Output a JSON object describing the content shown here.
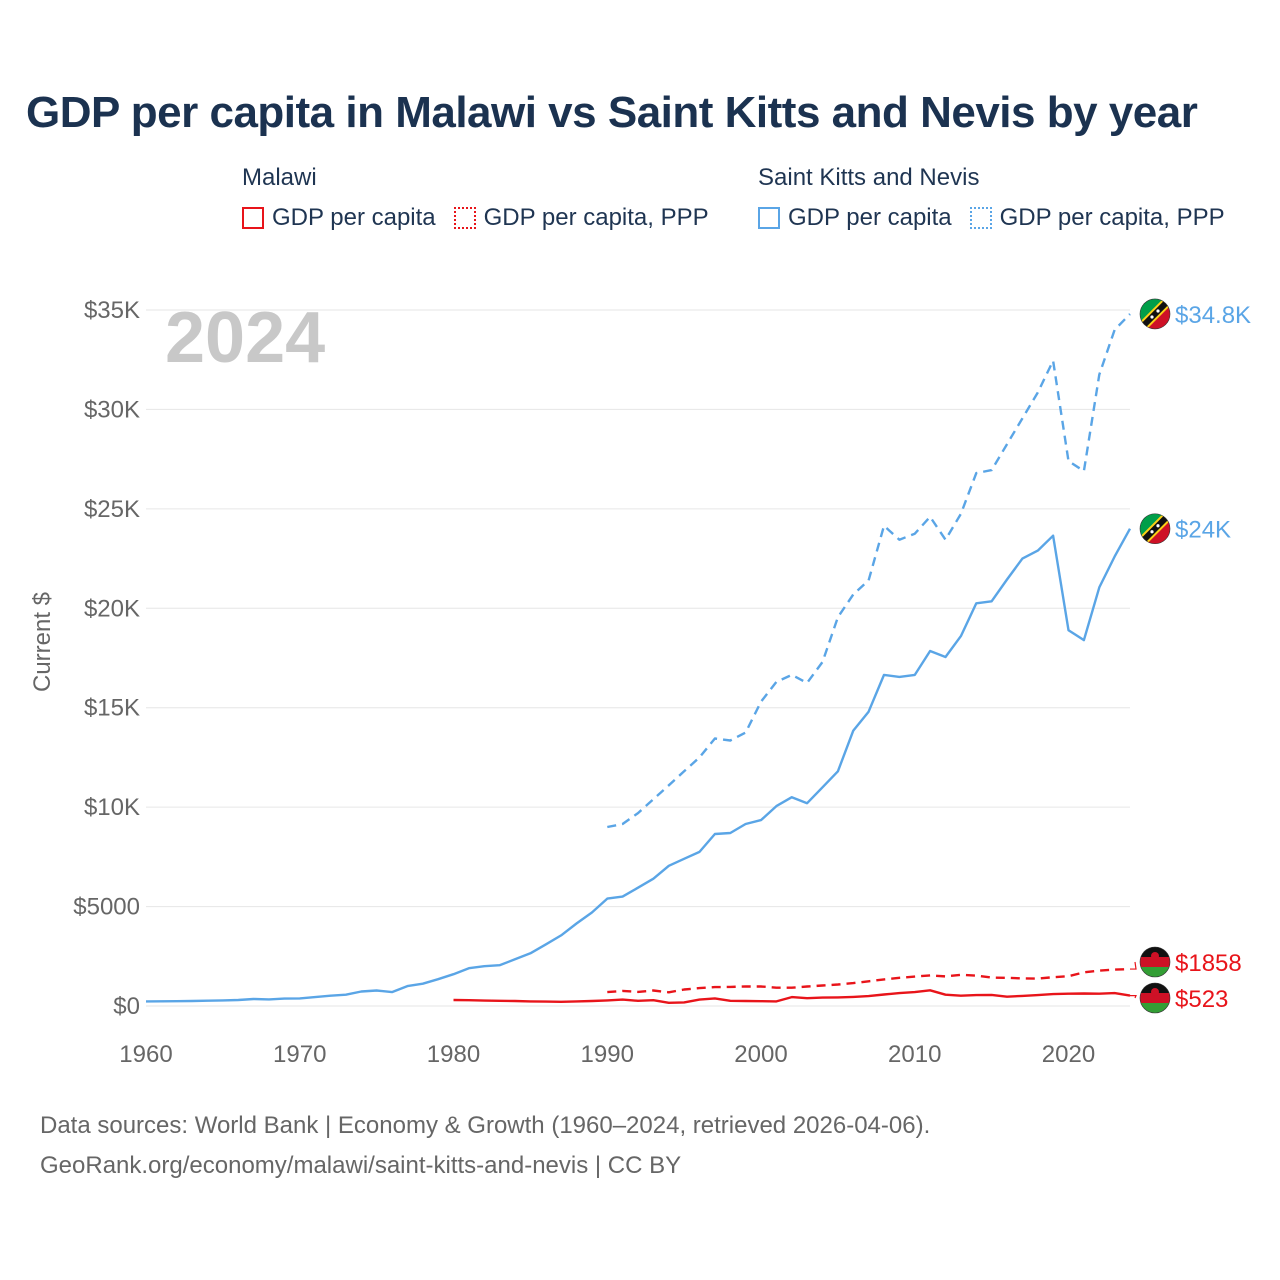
{
  "title": "GDP per capita in Malawi vs Saint Kitts and Nevis by year",
  "legend": {
    "malawi": {
      "name": "Malawi",
      "items": [
        "GDP per capita",
        "GDP per capita, PPP"
      ]
    },
    "skn": {
      "name": "Saint Kitts and Nevis",
      "items": [
        "GDP per capita",
        "GDP per capita, PPP"
      ]
    }
  },
  "colors": {
    "malawi": "#e8141a",
    "skn": "#5aa5e6",
    "grid": "#e6e6e6",
    "axis_text": "#666666",
    "year_stamp": "#c8c8c8"
  },
  "sources": {
    "line1": "Data sources: World Bank | Economy & Growth (1960–2024, retrieved 2026-04-06).",
    "line2": "GeoRank.org/economy/malawi/saint-kitts-and-nevis | CC BY"
  },
  "chart_data": {
    "type": "line",
    "year_stamp": "2024",
    "ylabel": "Current $",
    "xlabel": "",
    "xlim": [
      1960,
      2024
    ],
    "ylim": [
      0,
      35000
    ],
    "x_ticks": [
      "1960",
      "1970",
      "1980",
      "1990",
      "2000",
      "2010",
      "2020"
    ],
    "y_ticks": [
      {
        "value": 0,
        "label": "$0"
      },
      {
        "value": 5000,
        "label": "$5000"
      },
      {
        "value": 10000,
        "label": "$10K"
      },
      {
        "value": 15000,
        "label": "$15K"
      },
      {
        "value": 20000,
        "label": "$20K"
      },
      {
        "value": 25000,
        "label": "$25K"
      },
      {
        "value": 30000,
        "label": "$30K"
      },
      {
        "value": 35000,
        "label": "$35K"
      }
    ],
    "grid": true,
    "series": [
      {
        "id": "skn-gdp",
        "country": "Saint Kitts and Nevis",
        "name": "GDP per capita",
        "style": "solid",
        "color_key": "skn",
        "end_label": "$24K",
        "x": [
          1960,
          1961,
          1962,
          1963,
          1964,
          1965,
          1966,
          1967,
          1968,
          1969,
          1970,
          1971,
          1972,
          1973,
          1974,
          1975,
          1976,
          1977,
          1978,
          1979,
          1980,
          1981,
          1982,
          1983,
          1984,
          1985,
          1986,
          1987,
          1988,
          1989,
          1990,
          1991,
          1992,
          1993,
          1994,
          1995,
          1996,
          1997,
          1998,
          1999,
          2000,
          2001,
          2002,
          2003,
          2004,
          2005,
          2006,
          2007,
          2008,
          2009,
          2010,
          2011,
          2012,
          2013,
          2014,
          2015,
          2016,
          2017,
          2018,
          2019,
          2020,
          2021,
          2022,
          2023,
          2024
        ],
        "values": [
          230,
          235,
          240,
          250,
          265,
          280,
          300,
          350,
          330,
          370,
          380,
          450,
          520,
          570,
          730,
          780,
          700,
          1000,
          1120,
          1350,
          1600,
          1900,
          2000,
          2050,
          2350,
          2650,
          3100,
          3550,
          4150,
          4700,
          5400,
          5500,
          5950,
          6400,
          7050,
          7400,
          7750,
          8650,
          8700,
          9150,
          9350,
          10050,
          10500,
          10200,
          11000,
          11800,
          13850,
          14800,
          16650,
          16550,
          16650,
          17850,
          17550,
          18600,
          20250,
          20350,
          21450,
          22500,
          22900,
          23650,
          18900,
          18400,
          21050,
          22600,
          24000
        ]
      },
      {
        "id": "skn-ppp",
        "country": "Saint Kitts and Nevis",
        "name": "GDP per capita, PPP",
        "style": "dashed",
        "color_key": "skn",
        "end_label": "$34.8K",
        "x": [
          1990,
          1991,
          1992,
          1993,
          1994,
          1995,
          1996,
          1997,
          1998,
          1999,
          2000,
          2001,
          2002,
          2003,
          2004,
          2005,
          2006,
          2007,
          2008,
          2009,
          2010,
          2011,
          2012,
          2013,
          2014,
          2015,
          2016,
          2017,
          2018,
          2019,
          2020,
          2021,
          2022,
          2023,
          2024
        ],
        "values": [
          9000,
          9150,
          9700,
          10400,
          11100,
          11800,
          12500,
          13450,
          13350,
          13750,
          15300,
          16300,
          16650,
          16250,
          17300,
          19550,
          20700,
          21400,
          24150,
          23450,
          23750,
          24600,
          23450,
          24750,
          26800,
          26950,
          28250,
          29550,
          30850,
          32450,
          27400,
          26900,
          31750,
          34000,
          34800
        ]
      },
      {
        "id": "mw-gdp",
        "country": "Malawi",
        "name": "GDP per capita",
        "style": "solid",
        "color_key": "malawi",
        "end_label": "$523",
        "x": [
          1980,
          1981,
          1982,
          1983,
          1984,
          1985,
          1986,
          1987,
          1988,
          1989,
          1990,
          1991,
          1992,
          1993,
          1994,
          1995,
          1996,
          1997,
          1998,
          1999,
          2000,
          2001,
          2002,
          2003,
          2004,
          2005,
          2006,
          2007,
          2008,
          2009,
          2010,
          2011,
          2012,
          2013,
          2014,
          2015,
          2016,
          2017,
          2018,
          2019,
          2020,
          2021,
          2022,
          2023,
          2024
        ],
        "values": [
          300,
          290,
          270,
          260,
          250,
          230,
          220,
          210,
          230,
          250,
          280,
          320,
          260,
          290,
          160,
          180,
          320,
          380,
          260,
          250,
          240,
          230,
          450,
          390,
          420,
          430,
          460,
          500,
          580,
          650,
          700,
          790,
          570,
          520,
          550,
          560,
          470,
          510,
          550,
          600,
          620,
          630,
          620,
          650,
          523
        ]
      },
      {
        "id": "mw-ppp",
        "country": "Malawi",
        "name": "GDP per capita, PPP",
        "style": "dashed",
        "color_key": "malawi",
        "end_label": "$1858",
        "x": [
          1990,
          1991,
          1992,
          1993,
          1994,
          1995,
          1996,
          1997,
          1998,
          1999,
          2000,
          2001,
          2002,
          2003,
          2004,
          2005,
          2006,
          2007,
          2008,
          2009,
          2010,
          2011,
          2012,
          2013,
          2014,
          2015,
          2016,
          2017,
          2018,
          2019,
          2020,
          2021,
          2022,
          2023,
          2024
        ],
        "values": [
          700,
          760,
          710,
          780,
          690,
          830,
          900,
          950,
          960,
          980,
          980,
          920,
          920,
          980,
          1030,
          1080,
          1150,
          1240,
          1340,
          1420,
          1480,
          1540,
          1490,
          1570,
          1530,
          1430,
          1420,
          1390,
          1380,
          1450,
          1500,
          1690,
          1780,
          1830,
          1858
        ]
      }
    ]
  }
}
